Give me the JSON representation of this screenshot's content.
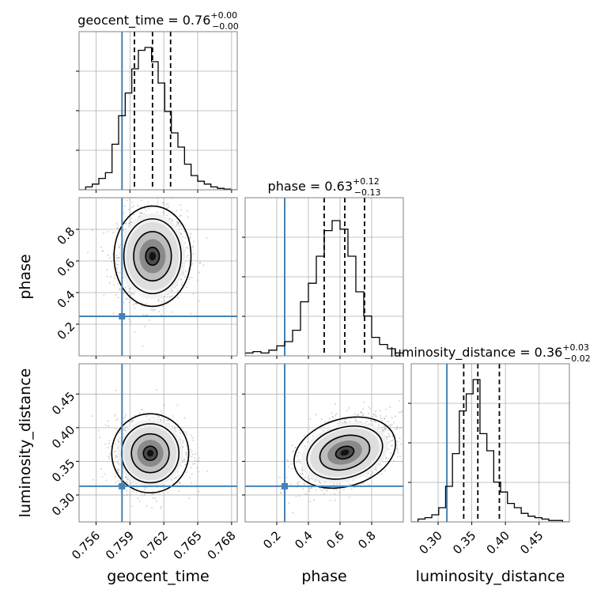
{
  "chart_data": {
    "type": "corner",
    "variables": [
      "geocent_time",
      "phase",
      "luminosity_distance"
    ],
    "axis_labels": [
      "geocent_time",
      "phase",
      "luminosity_distance"
    ],
    "ranges": {
      "geocent_time": [
        0.7545,
        0.7685
      ],
      "phase": [
        0.0,
        1.0
      ],
      "luminosity_distance": [
        0.26,
        0.495
      ]
    },
    "ticks": {
      "geocent_time": [
        0.756,
        0.759,
        0.762,
        0.765,
        0.768
      ],
      "phase": [
        0.2,
        0.4,
        0.6,
        0.8
      ],
      "luminosity_distance": [
        0.3,
        0.35,
        0.4,
        0.45
      ]
    },
    "tick_labels": {
      "geocent_time": [
        "0.756",
        "0.759",
        "0.762",
        "0.765",
        "0.768"
      ],
      "phase": [
        "0.2",
        "0.4",
        "0.6",
        "0.8"
      ],
      "luminosity_distance": [
        "0.30",
        "0.35",
        "0.40",
        "0.45"
      ]
    },
    "truths": {
      "geocent_time": 0.7583,
      "phase": 0.25,
      "luminosity_distance": 0.313
    },
    "titles": [
      {
        "param": "geocent_time",
        "median": "0.76",
        "plus": "+0.00",
        "minus": "−0.00"
      },
      {
        "param": "phase",
        "median": "0.63",
        "plus": "+0.12",
        "minus": "−0.13"
      },
      {
        "param": "luminosity_distance",
        "median": "0.36",
        "plus": "+0.03",
        "minus": "−0.02"
      }
    ],
    "quantiles": {
      "geocent_time": [
        0.7594,
        0.761,
        0.7626
      ],
      "phase": [
        0.5,
        0.63,
        0.755
      ],
      "luminosity_distance": [
        0.338,
        0.359,
        0.391
      ]
    },
    "histograms": {
      "geocent_time": {
        "range": [
          0.7545,
          0.7685
        ],
        "counts": [
          0.0,
          0.02,
          0.04,
          0.08,
          0.12,
          0.32,
          0.52,
          0.68,
          0.85,
          0.98,
          1.0,
          0.9,
          0.75,
          0.55,
          0.4,
          0.3,
          0.18,
          0.1,
          0.06,
          0.04,
          0.02,
          0.01,
          0.005,
          0.0
        ]
      },
      "phase": {
        "range": [
          0.0,
          1.0
        ],
        "counts": [
          0.02,
          0.03,
          0.02,
          0.04,
          0.07,
          0.1,
          0.18,
          0.38,
          0.51,
          0.7,
          0.88,
          0.95,
          0.89,
          0.7,
          0.45,
          0.28,
          0.13,
          0.08,
          0.05,
          0.02
        ]
      },
      "luminosity_distance": {
        "range": [
          0.26,
          0.495
        ],
        "counts": [
          0.0,
          0.02,
          0.03,
          0.05,
          0.1,
          0.25,
          0.48,
          0.78,
          0.9,
          1.0,
          0.62,
          0.5,
          0.28,
          0.21,
          0.13,
          0.1,
          0.06,
          0.04,
          0.03,
          0.02,
          0.01,
          0.01,
          0.0
        ]
      }
    },
    "joint_2d": [
      {
        "x": "geocent_time",
        "y": "phase",
        "mean": [
          0.761,
          0.63
        ],
        "sigma": [
          0.00145,
          0.135
        ],
        "rho": 0.0
      },
      {
        "x": "geocent_time",
        "y": "luminosity_distance",
        "mean": [
          0.7608,
          0.362
        ],
        "sigma": [
          0.00145,
          0.025
        ],
        "rho": 0.0
      },
      {
        "x": "phase",
        "y": "luminosity_distance",
        "mean": [
          0.63,
          0.363
        ],
        "sigma": [
          0.14,
          0.025
        ],
        "rho": 0.45
      }
    ],
    "colors": {
      "truth": "#4682b4",
      "histogram": "#000000",
      "quantile": "#000000",
      "contour": "#000000",
      "grid": "#b0b0b0",
      "points": "#a0a0a0"
    },
    "grid": true
  }
}
